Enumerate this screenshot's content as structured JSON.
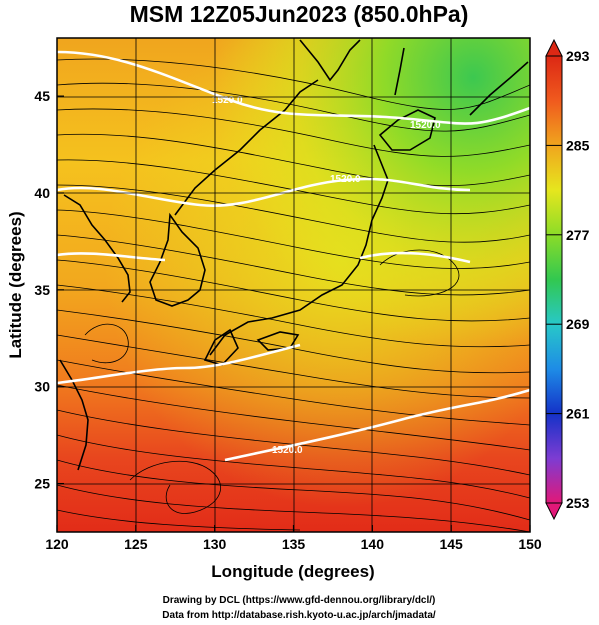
{
  "title": "MSM 12Z05Jun2023 (850.0hPa)",
  "x_axis": {
    "label": "Longitude (degrees)",
    "min": 120,
    "max": 150,
    "ticks": [
      "120",
      "125",
      "130",
      "135",
      "140",
      "145",
      "150"
    ]
  },
  "y_axis": {
    "label": "Latitude  (degrees)",
    "min": 22.5,
    "max": 48,
    "ticks": [
      "25",
      "30",
      "35",
      "40",
      "45"
    ]
  },
  "colorbar": {
    "min": 253,
    "max": 293,
    "labels": [
      "293",
      "285",
      "277",
      "269",
      "261",
      "253"
    ],
    "colors": [
      "#e21878",
      "#7d3cd2",
      "#1432c8",
      "#1e8ce6",
      "#28c8c8",
      "#32c850",
      "#8cdc28",
      "#e6e61e",
      "#f0a51e",
      "#f05a1e",
      "#dc2814"
    ]
  },
  "contour_labels": [
    "1520.0",
    "1520.0",
    "1520.0",
    "1520.0"
  ],
  "credits": {
    "line1": "Drawing by DCL (https://www.gfd-dennou.org/library/dcl/)",
    "line2": "Data from http://database.rish.kyoto-u.ac.jp/arch/jmadata/"
  }
}
